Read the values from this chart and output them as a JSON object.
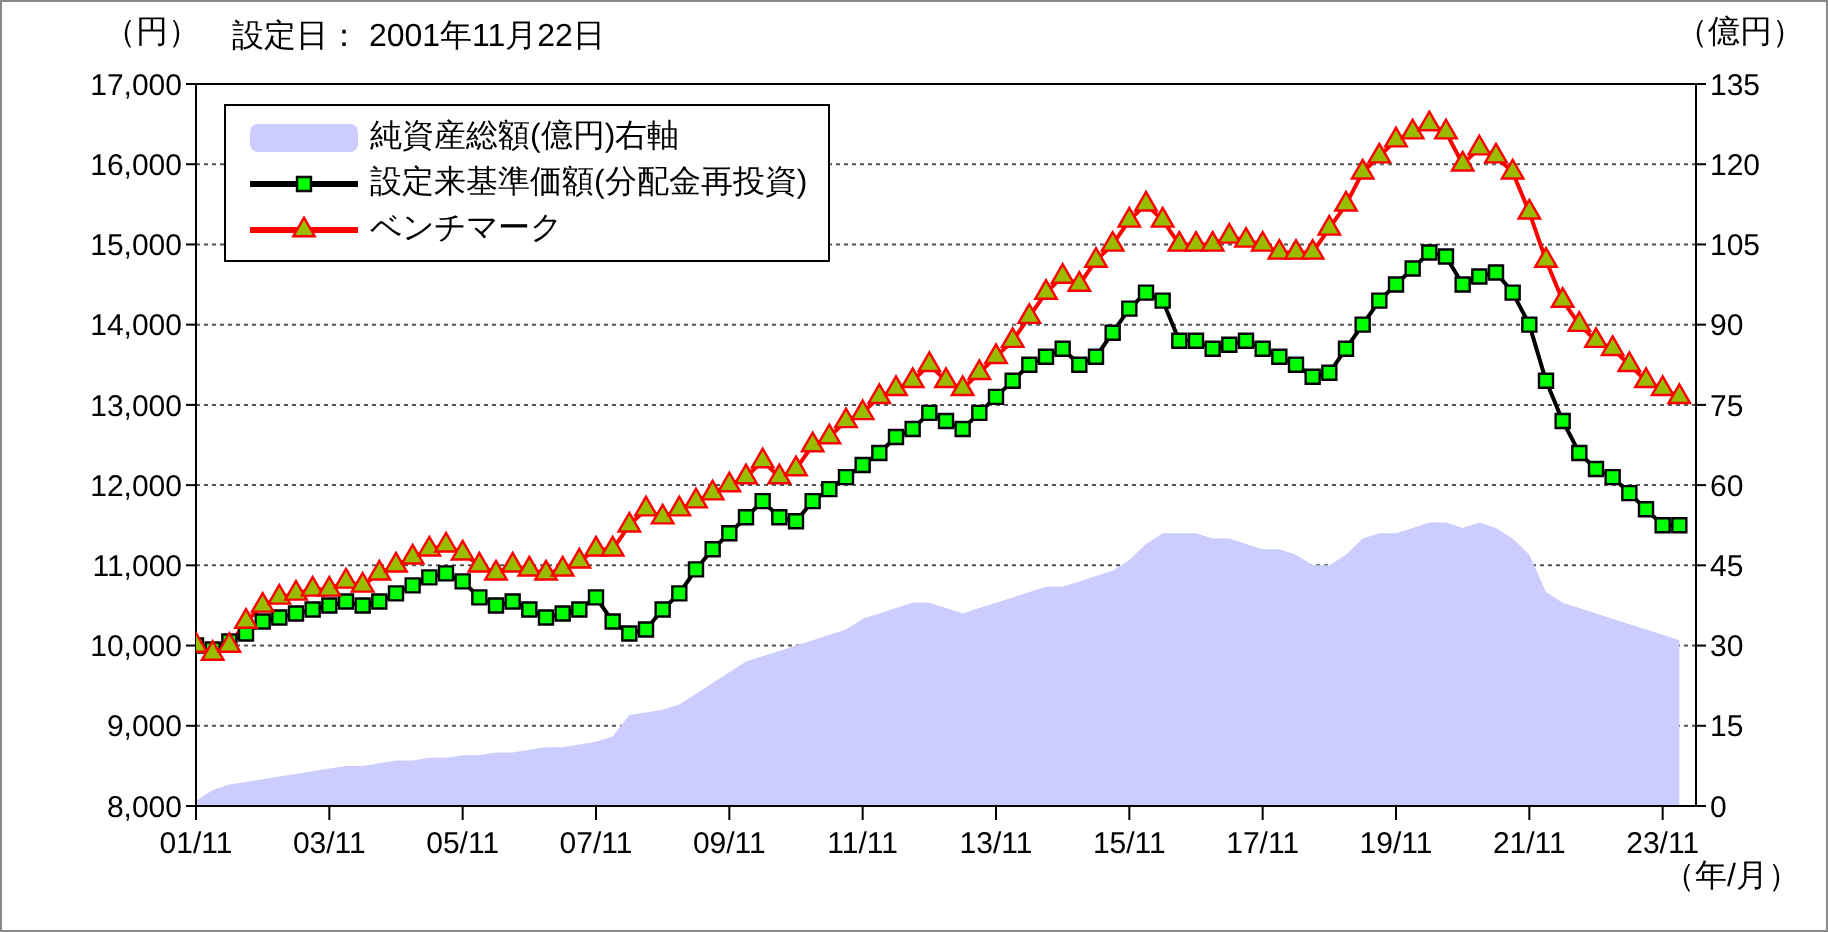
{
  "chart_data": {
    "type": "line",
    "title": "設定日： 2001年11月22日",
    "ylabel": "（円）",
    "y2label": "（億円）",
    "xlabel": "（年/月）",
    "x": [
      "2001-11",
      "2002-02",
      "2002-05",
      "2002-08",
      "2002-11",
      "2003-02",
      "2003-05",
      "2003-08",
      "2003-11",
      "2004-02",
      "2004-05",
      "2004-08",
      "2004-11",
      "2005-02",
      "2005-05",
      "2005-08",
      "2005-11",
      "2006-02",
      "2006-05",
      "2006-08",
      "2006-11",
      "2007-02",
      "2007-05",
      "2007-08",
      "2007-11",
      "2008-02",
      "2008-05",
      "2008-08",
      "2008-11",
      "2009-02",
      "2009-05",
      "2009-08",
      "2009-11",
      "2010-02",
      "2010-05",
      "2010-08",
      "2010-11",
      "2011-02",
      "2011-05",
      "2011-08",
      "2011-11",
      "2012-02",
      "2012-05",
      "2012-08",
      "2012-11",
      "2013-02",
      "2013-05",
      "2013-08",
      "2013-11",
      "2014-02",
      "2014-05",
      "2014-08",
      "2014-11",
      "2015-02",
      "2015-05",
      "2015-08",
      "2015-11",
      "2016-02",
      "2016-05",
      "2016-08",
      "2016-11",
      "2017-02",
      "2017-05",
      "2017-08",
      "2017-11",
      "2018-02",
      "2018-05",
      "2018-08",
      "2018-11",
      "2019-02",
      "2019-05",
      "2019-08",
      "2019-11",
      "2020-02",
      "2020-05",
      "2020-08",
      "2020-11",
      "2021-02",
      "2021-05",
      "2021-08",
      "2021-11",
      "2022-02",
      "2022-05",
      "2022-08",
      "2022-11",
      "2023-02",
      "2023-05",
      "2023-08",
      "2023-11",
      "2024-02"
    ],
    "series": [
      {
        "name": "純資産総額(億円)右軸",
        "type": "area",
        "axis": "y2",
        "color": "#ccccff",
        "values": [
          1,
          3,
          4,
          4.5,
          5,
          5.5,
          6,
          6.5,
          7,
          7.5,
          7.5,
          8,
          8.5,
          8.5,
          9,
          9,
          9.5,
          9.5,
          10,
          10,
          10.5,
          11,
          11,
          11.5,
          12,
          13,
          17,
          17.5,
          18,
          19,
          21,
          23,
          25,
          27,
          28,
          29,
          30,
          31,
          32,
          33,
          35,
          36,
          37,
          38,
          38,
          37,
          36,
          37,
          38,
          39,
          40,
          41,
          41,
          42,
          43,
          44,
          46,
          49,
          51,
          51,
          51,
          50,
          50,
          49,
          48,
          48,
          47,
          45,
          45,
          47,
          50,
          51,
          51,
          52,
          53,
          53,
          52,
          53,
          52,
          50,
          47,
          40,
          38,
          37,
          36,
          35,
          34,
          33,
          32,
          31
        ]
      },
      {
        "name": "設定来基準価額(分配金再投資)",
        "marker": "square",
        "color": "#000000",
        "values": [
          10000,
          9950,
          10050,
          10150,
          10300,
          10350,
          10400,
          10450,
          10500,
          10550,
          10500,
          10550,
          10650,
          10750,
          10850,
          10900,
          10800,
          10600,
          10500,
          10550,
          10450,
          10350,
          10400,
          10450,
          10600,
          10300,
          10150,
          10200,
          10450,
          10650,
          10950,
          11200,
          11400,
          11600,
          11800,
          11600,
          11550,
          11800,
          11950,
          12100,
          12250,
          12400,
          12600,
          12700,
          12900,
          12800,
          12700,
          12900,
          13100,
          13300,
          13500,
          13600,
          13700,
          13500,
          13600,
          13900,
          14200,
          14400,
          14300,
          13800,
          13800,
          13700,
          13750,
          13800,
          13700,
          13600,
          13500,
          13350,
          13400,
          13700,
          14000,
          14300,
          14500,
          14700,
          14900,
          14850,
          14500,
          14600,
          14650,
          14400,
          14000,
          13300,
          12800,
          12400,
          12200,
          12100,
          11900,
          11700,
          11500,
          11500
        ]
      },
      {
        "name": "ベンチマーク",
        "marker": "triangle",
        "color": "#ff0000",
        "values": [
          10000,
          9900,
          10000,
          10300,
          10500,
          10600,
          10650,
          10700,
          10700,
          10800,
          10750,
          10900,
          11000,
          11100,
          11200,
          11250,
          11150,
          11000,
          10900,
          11000,
          10950,
          10900,
          10950,
          11050,
          11200,
          11200,
          11500,
          11700,
          11600,
          11700,
          11800,
          11900,
          12000,
          12100,
          12300,
          12100,
          12200,
          12500,
          12600,
          12800,
          12900,
          13100,
          13200,
          13300,
          13500,
          13300,
          13200,
          13400,
          13600,
          13800,
          14100,
          14400,
          14600,
          14500,
          14800,
          15000,
          15300,
          15500,
          15300,
          15000,
          15000,
          15000,
          15100,
          15050,
          15000,
          14900,
          14900,
          14900,
          15200,
          15500,
          15900,
          16100,
          16300,
          16400,
          16500,
          16400,
          16000,
          16200,
          16100,
          15900,
          15400,
          14800,
          14300,
          14000,
          13800,
          13700,
          13500,
          13300,
          13200,
          13100
        ]
      }
    ],
    "xlim": [
      "2001-11",
      "2024-05"
    ],
    "xticks": [
      {
        "value": "2001-11",
        "label": "01/11"
      },
      {
        "value": "2003-11",
        "label": "03/11"
      },
      {
        "value": "2005-11",
        "label": "05/11"
      },
      {
        "value": "2007-11",
        "label": "07/11"
      },
      {
        "value": "2009-11",
        "label": "09/11"
      },
      {
        "value": "2011-11",
        "label": "11/11"
      },
      {
        "value": "2013-11",
        "label": "13/11"
      },
      {
        "value": "2015-11",
        "label": "15/11"
      },
      {
        "value": "2017-11",
        "label": "17/11"
      },
      {
        "value": "2019-11",
        "label": "19/11"
      },
      {
        "value": "2021-11",
        "label": "21/11"
      },
      {
        "value": "2023-11",
        "label": "23/11"
      }
    ],
    "ylim": [
      8000,
      17000
    ],
    "yticks": [
      {
        "value": 8000,
        "label": "8,000"
      },
      {
        "value": 9000,
        "label": "9,000"
      },
      {
        "value": 10000,
        "label": "10,000"
      },
      {
        "value": 11000,
        "label": "11,000"
      },
      {
        "value": 12000,
        "label": "12,000"
      },
      {
        "value": 13000,
        "label": "13,000"
      },
      {
        "value": 14000,
        "label": "14,000"
      },
      {
        "value": 15000,
        "label": "15,000"
      },
      {
        "value": 16000,
        "label": "16,000"
      },
      {
        "value": 17000,
        "label": "17,000"
      }
    ],
    "y2lim": [
      0,
      135
    ],
    "y2ticks": [
      0,
      15,
      30,
      45,
      60,
      75,
      90,
      105,
      120,
      135
    ],
    "grid": "y",
    "legend": "top left"
  }
}
